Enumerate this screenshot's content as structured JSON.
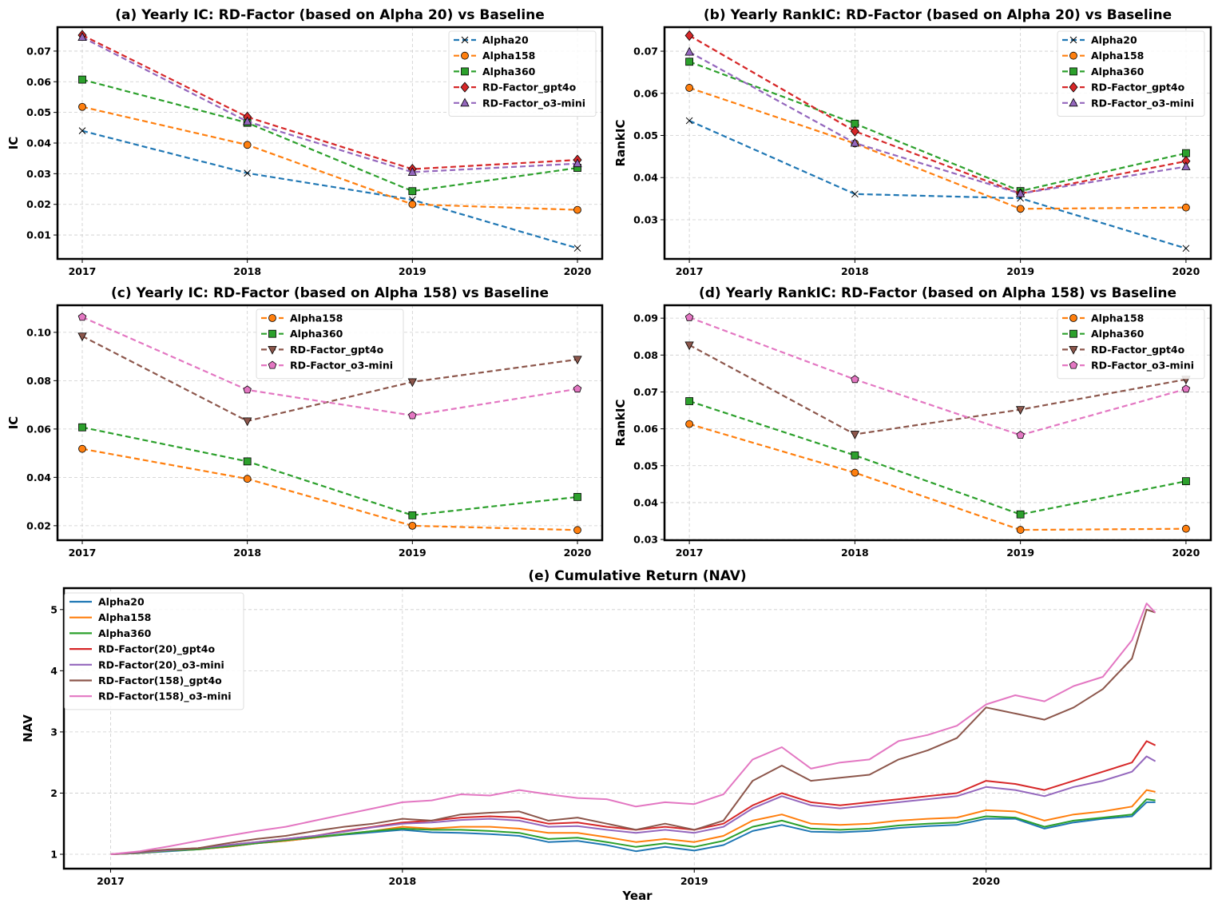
{
  "chart_data": [
    {
      "type": "line",
      "title": "(a) Yearly IC: RD-Factor (based on Alpha 20) vs Baseline",
      "xlabel": "",
      "ylabel": "IC",
      "categories": [
        "2017",
        "2018",
        "2019",
        "2020"
      ],
      "ylim": [
        0.0022,
        0.0778
      ],
      "yticks": [
        "0.01",
        "0.02",
        "0.03",
        "0.04",
        "0.05",
        "0.06",
        "0.07"
      ],
      "grid": true,
      "legend": "top-right",
      "series": [
        {
          "name": "Alpha20",
          "color": "#1f77b4",
          "marker": "x",
          "values": [
            0.044,
            0.0302,
            0.0215,
            0.0057
          ]
        },
        {
          "name": "Alpha158",
          "color": "#ff7f0e",
          "marker": "circle",
          "values": [
            0.0518,
            0.0394,
            0.02,
            0.0182
          ]
        },
        {
          "name": "Alpha360",
          "color": "#2ca02c",
          "marker": "square",
          "values": [
            0.0607,
            0.0466,
            0.0243,
            0.0319
          ]
        },
        {
          "name": "RD-Factor_gpt4o",
          "color": "#d62728",
          "marker": "diamond",
          "values": [
            0.0752,
            0.0485,
            0.0315,
            0.0345
          ]
        },
        {
          "name": "RD-Factor_o3-mini",
          "color": "#9467bd",
          "marker": "triangle-up",
          "values": [
            0.0745,
            0.047,
            0.0305,
            0.0333
          ]
        }
      ]
    },
    {
      "type": "line",
      "title": "(b) Yearly RankIC: RD-Factor (based on Alpha 20) vs Baseline",
      "xlabel": "",
      "ylabel": "RankIC",
      "categories": [
        "2017",
        "2018",
        "2019",
        "2020"
      ],
      "ylim": [
        0.0207,
        0.0757
      ],
      "yticks": [
        "0.03",
        "0.04",
        "0.05",
        "0.06",
        "0.07"
      ],
      "grid": true,
      "legend": "top-right",
      "series": [
        {
          "name": "Alpha20",
          "color": "#1f77b4",
          "marker": "x",
          "values": [
            0.0535,
            0.0361,
            0.0351,
            0.0232
          ]
        },
        {
          "name": "Alpha158",
          "color": "#ff7f0e",
          "marker": "circle",
          "values": [
            0.0613,
            0.0481,
            0.0326,
            0.0329
          ]
        },
        {
          "name": "Alpha360",
          "color": "#2ca02c",
          "marker": "square",
          "values": [
            0.0675,
            0.0528,
            0.0368,
            0.0458
          ]
        },
        {
          "name": "RD-Factor_gpt4o",
          "color": "#d62728",
          "marker": "diamond",
          "values": [
            0.0737,
            0.051,
            0.0362,
            0.0439
          ]
        },
        {
          "name": "RD-Factor_o3-mini",
          "color": "#9467bd",
          "marker": "triangle-up",
          "values": [
            0.0698,
            0.0482,
            0.0362,
            0.0426
          ]
        }
      ]
    },
    {
      "type": "line",
      "title": "(c) Yearly IC: RD-Factor (based on Alpha 158) vs Baseline",
      "xlabel": "",
      "ylabel": "IC",
      "categories": [
        "2017",
        "2018",
        "2019",
        "2020"
      ],
      "ylim": [
        0.014,
        0.1112
      ],
      "yticks": [
        "0.02",
        "0.04",
        "0.06",
        "0.08",
        "0.10"
      ],
      "grid": true,
      "legend": "top-center",
      "series": [
        {
          "name": "Alpha158",
          "color": "#ff7f0e",
          "marker": "circle",
          "values": [
            0.0518,
            0.0394,
            0.02,
            0.0182
          ]
        },
        {
          "name": "Alpha360",
          "color": "#2ca02c",
          "marker": "square",
          "values": [
            0.0607,
            0.0466,
            0.0243,
            0.0319
          ]
        },
        {
          "name": "RD-Factor_gpt4o",
          "color": "#8c564b",
          "marker": "triangle-down",
          "values": [
            0.0984,
            0.0633,
            0.0795,
            0.0888
          ]
        },
        {
          "name": "RD-Factor_o3-mini",
          "color": "#e377c2",
          "marker": "pentagon",
          "values": [
            0.1063,
            0.0762,
            0.0656,
            0.0766
          ]
        }
      ]
    },
    {
      "type": "line",
      "title": "(d) Yearly RankIC: RD-Factor (based on Alpha 158) vs Baseline",
      "xlabel": "",
      "ylabel": "RankIC",
      "categories": [
        "2017",
        "2018",
        "2019",
        "2020"
      ],
      "ylim": [
        0.0298,
        0.0935
      ],
      "yticks": [
        "0.03",
        "0.04",
        "0.05",
        "0.06",
        "0.07",
        "0.08",
        "0.09"
      ],
      "grid": true,
      "legend": "top-right",
      "series": [
        {
          "name": "Alpha158",
          "color": "#ff7f0e",
          "marker": "circle",
          "values": [
            0.0613,
            0.0481,
            0.0326,
            0.0329
          ]
        },
        {
          "name": "Alpha360",
          "color": "#2ca02c",
          "marker": "square",
          "values": [
            0.0675,
            0.0528,
            0.0368,
            0.0458
          ]
        },
        {
          "name": "RD-Factor_gpt4o",
          "color": "#8c564b",
          "marker": "triangle-down",
          "values": [
            0.0827,
            0.0585,
            0.0652,
            0.0734
          ]
        },
        {
          "name": "RD-Factor_o3-mini",
          "color": "#e377c2",
          "marker": "pentagon",
          "values": [
            0.0902,
            0.0734,
            0.0583,
            0.0708
          ]
        }
      ]
    },
    {
      "type": "line",
      "title": "(e) Cumulative Return (NAV)",
      "xlabel": "Year",
      "ylabel": "NAV",
      "xlim": [
        2016.84,
        2020.77
      ],
      "ylim": [
        0.765,
        5.35
      ],
      "xticks": [
        "2017",
        "2018",
        "2019",
        "2020"
      ],
      "yticks": [
        "1",
        "2",
        "3",
        "4",
        "5"
      ],
      "grid": true,
      "legend": "top-left",
      "x": [
        2017.0,
        2017.1,
        2017.2,
        2017.3,
        2017.4,
        2017.5,
        2017.6,
        2017.7,
        2017.8,
        2017.9,
        2018.0,
        2018.1,
        2018.2,
        2018.3,
        2018.4,
        2018.5,
        2018.6,
        2018.7,
        2018.8,
        2018.9,
        2019.0,
        2019.1,
        2019.2,
        2019.3,
        2019.4,
        2019.5,
        2019.6,
        2019.7,
        2019.8,
        2019.9,
        2020.0,
        2020.1,
        2020.2,
        2020.3,
        2020.4,
        2020.5,
        2020.55,
        2020.58
      ],
      "series": [
        {
          "name": "Alpha20",
          "color": "#1f77b4",
          "values": [
            1.0,
            1.02,
            1.05,
            1.08,
            1.12,
            1.18,
            1.22,
            1.27,
            1.32,
            1.36,
            1.4,
            1.36,
            1.35,
            1.33,
            1.3,
            1.2,
            1.22,
            1.15,
            1.05,
            1.12,
            1.06,
            1.15,
            1.38,
            1.48,
            1.37,
            1.36,
            1.38,
            1.43,
            1.46,
            1.48,
            1.58,
            1.58,
            1.42,
            1.52,
            1.58,
            1.62,
            1.85,
            1.85
          ]
        },
        {
          "name": "Alpha158",
          "color": "#ff7f0e",
          "values": [
            1.0,
            1.02,
            1.06,
            1.08,
            1.12,
            1.18,
            1.22,
            1.27,
            1.33,
            1.38,
            1.45,
            1.42,
            1.45,
            1.45,
            1.42,
            1.35,
            1.35,
            1.28,
            1.2,
            1.25,
            1.2,
            1.3,
            1.55,
            1.65,
            1.5,
            1.48,
            1.5,
            1.55,
            1.58,
            1.6,
            1.72,
            1.7,
            1.55,
            1.65,
            1.7,
            1.78,
            2.05,
            2.02
          ]
        },
        {
          "name": "Alpha360",
          "color": "#2ca02c",
          "values": [
            1.0,
            1.02,
            1.06,
            1.08,
            1.13,
            1.18,
            1.23,
            1.28,
            1.33,
            1.38,
            1.42,
            1.4,
            1.4,
            1.38,
            1.35,
            1.25,
            1.27,
            1.2,
            1.12,
            1.18,
            1.12,
            1.22,
            1.45,
            1.55,
            1.42,
            1.4,
            1.42,
            1.47,
            1.5,
            1.52,
            1.62,
            1.6,
            1.45,
            1.55,
            1.6,
            1.65,
            1.9,
            1.88
          ]
        },
        {
          "name": "RD-Factor(20)_gpt4o",
          "color": "#d62728",
          "values": [
            1.0,
            1.03,
            1.07,
            1.1,
            1.15,
            1.2,
            1.25,
            1.3,
            1.38,
            1.45,
            1.52,
            1.55,
            1.6,
            1.62,
            1.6,
            1.5,
            1.52,
            1.45,
            1.4,
            1.45,
            1.4,
            1.5,
            1.8,
            2.0,
            1.85,
            1.8,
            1.85,
            1.9,
            1.95,
            2.0,
            2.2,
            2.15,
            2.05,
            2.2,
            2.35,
            2.5,
            2.85,
            2.78
          ]
        },
        {
          "name": "RD-Factor(20)_o3-mini",
          "color": "#9467bd",
          "values": [
            1.0,
            1.03,
            1.07,
            1.1,
            1.15,
            1.2,
            1.25,
            1.3,
            1.37,
            1.44,
            1.5,
            1.52,
            1.56,
            1.58,
            1.55,
            1.45,
            1.46,
            1.4,
            1.35,
            1.4,
            1.35,
            1.45,
            1.75,
            1.95,
            1.8,
            1.75,
            1.8,
            1.85,
            1.9,
            1.95,
            2.1,
            2.05,
            1.95,
            2.1,
            2.2,
            2.35,
            2.6,
            2.52
          ]
        },
        {
          "name": "RD-Factor(158)_gpt4o",
          "color": "#8c564b",
          "values": [
            1.0,
            1.04,
            1.08,
            1.1,
            1.18,
            1.25,
            1.3,
            1.38,
            1.45,
            1.5,
            1.58,
            1.55,
            1.65,
            1.68,
            1.7,
            1.55,
            1.6,
            1.5,
            1.4,
            1.5,
            1.4,
            1.55,
            2.2,
            2.45,
            2.2,
            2.25,
            2.3,
            2.55,
            2.7,
            2.9,
            3.4,
            3.3,
            3.2,
            3.4,
            3.7,
            4.2,
            5.0,
            4.95
          ]
        },
        {
          "name": "RD-Factor(158)_o3-mini",
          "color": "#e377c2",
          "values": [
            1.0,
            1.05,
            1.13,
            1.22,
            1.3,
            1.38,
            1.45,
            1.55,
            1.65,
            1.75,
            1.85,
            1.88,
            1.98,
            1.96,
            2.05,
            1.98,
            1.92,
            1.9,
            1.78,
            1.85,
            1.82,
            1.98,
            2.55,
            2.75,
            2.4,
            2.5,
            2.55,
            2.85,
            2.95,
            3.1,
            3.45,
            3.6,
            3.5,
            3.75,
            3.9,
            4.5,
            5.1,
            4.95
          ]
        }
      ]
    }
  ]
}
